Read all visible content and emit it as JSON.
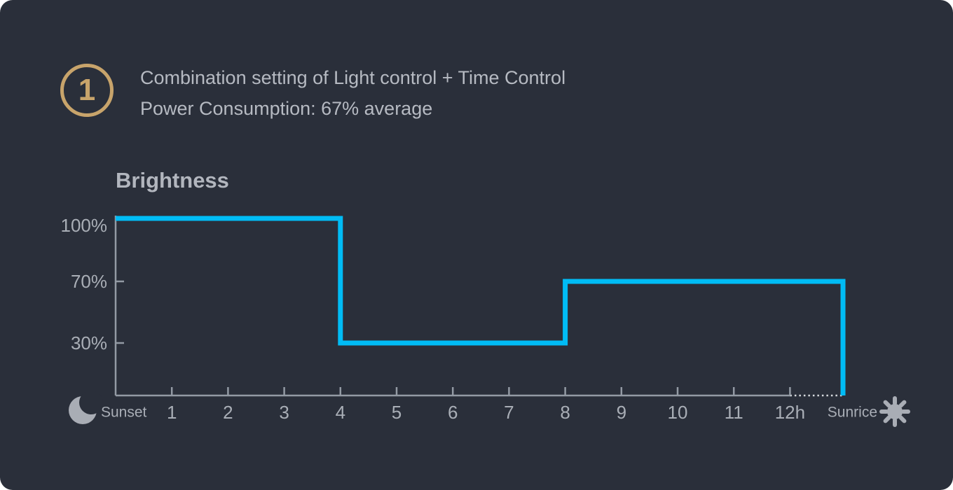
{
  "card": {
    "badge_number": "1",
    "heading_line1": "Combination setting of Light control + Time Control",
    "heading_line2": "Power Consumption: 67% average"
  },
  "chart_data": {
    "type": "line",
    "subtype": "step",
    "title": "Brightness",
    "x_tick_labels": [
      "1",
      "2",
      "3",
      "4",
      "5",
      "6",
      "7",
      "8",
      "9",
      "10",
      "11",
      "12h"
    ],
    "x_start_label": "Sunset",
    "x_end_label": "Sunrice",
    "x_start_icon": "moon-icon",
    "x_end_icon": "sun-icon",
    "y_tick_labels": [
      "100%",
      "70%",
      "30%"
    ],
    "y_tick_values": [
      100,
      70,
      30
    ],
    "segments": [
      {
        "from_hour": 0,
        "to_hour": 4,
        "brightness_pct": 100
      },
      {
        "from_hour": 4,
        "to_hour": 8,
        "brightness_pct": 30
      },
      {
        "from_hour": 8,
        "to_hour": "sunrise",
        "brightness_pct": 70
      }
    ],
    "line_color": "#00bcf5",
    "axis_color": "#939aa4",
    "dotted_axis_color": "#d6dade",
    "icon_color": "#a9adb5",
    "grid": false,
    "legend": false
  },
  "colors": {
    "background": "#2a2f3a",
    "page": "#ffffff",
    "badge_accent": "#c8a46b",
    "text": "#b6bac2"
  }
}
